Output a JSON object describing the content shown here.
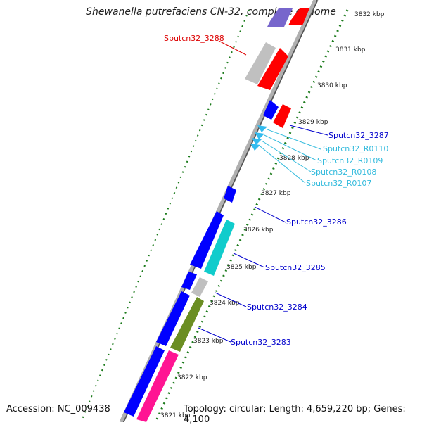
{
  "title": "Shewanella putrefaciens CN-32, complete genome",
  "footer": {
    "accession": "Accession: NC_009438",
    "summary": "Topology: circular; Length: 4,659,220 bp; Genes: 4,100"
  },
  "colors": {
    "blue": "#0000ff",
    "red": "#ff0000",
    "cyan": "#00cccc",
    "sky": "#33bbee",
    "olive": "#6b8e23",
    "magenta": "#ff1493",
    "grey": "#c0c0c0",
    "purple": "#7766cc",
    "ruler": "#1a7a1a",
    "backbone": "#888888"
  },
  "ticks": [
    {
      "label": "3832 kbp"
    },
    {
      "label": "3831 kbp"
    },
    {
      "label": "3830 kbp"
    },
    {
      "label": "3829 kbp"
    },
    {
      "label": "3828 kbp"
    },
    {
      "label": "3827 kbp"
    },
    {
      "label": "3826 kbp"
    },
    {
      "label": "3825 kbp"
    },
    {
      "label": "3824 kbp"
    },
    {
      "label": "3823 kbp"
    },
    {
      "label": "3822 kbp"
    },
    {
      "label": "3821 kbp"
    }
  ],
  "gene_labels": [
    {
      "text": "Sputcn32_3288",
      "color": "#dd0000"
    },
    {
      "text": "Sputcn32_3287",
      "color": "#0000cc"
    },
    {
      "text": "Sputcn32_R0110",
      "color": "#33bbdd"
    },
    {
      "text": "Sputcn32_R0109",
      "color": "#33bbdd"
    },
    {
      "text": "Sputcn32_R0108",
      "color": "#33bbdd"
    },
    {
      "text": "Sputcn32_R0107",
      "color": "#33bbdd"
    },
    {
      "text": "Sputcn32_3286",
      "color": "#0000cc"
    },
    {
      "text": "Sputcn32_3285",
      "color": "#0000cc"
    },
    {
      "text": "Sputcn32_3284",
      "color": "#0000cc"
    },
    {
      "text": "Sputcn32_3283",
      "color": "#0000cc"
    }
  ]
}
